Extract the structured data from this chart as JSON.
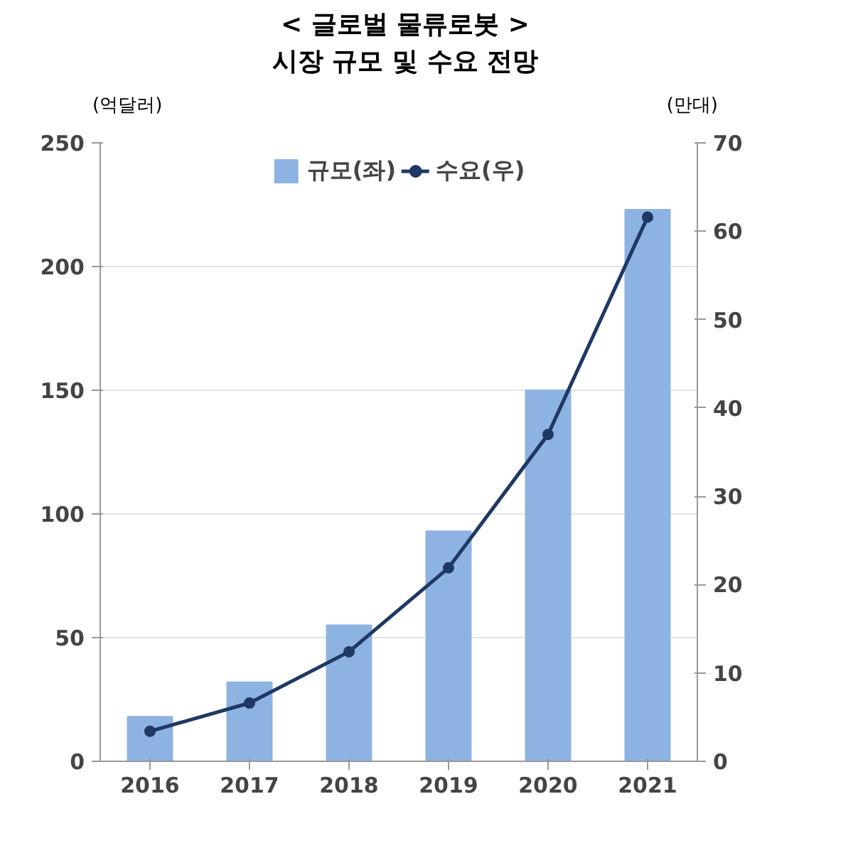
{
  "chart_data": {
    "type": "bar",
    "title": "<  글로벌 물류로봇  >\n시장 규모 및 수요 전망",
    "ylabel": "(억달러)",
    "y2label": "(만대)",
    "categories": [
      "2016",
      "2017",
      "2018",
      "2019",
      "2020",
      "2021"
    ],
    "series": [
      {
        "name": "규모(좌)",
        "color": "#8db3e2",
        "values": [
          18,
          32,
          55,
          93,
          150,
          223
        ]
      },
      {
        "name": "수요(우)",
        "type": "line",
        "axis": "y2",
        "color": "#1f3864",
        "marker": "circle",
        "values": [
          3.4,
          6.6,
          12.4,
          21.9,
          37,
          61.6
        ]
      }
    ],
    "ylim": [
      0,
      250
    ],
    "yticks": [
      0,
      50,
      100,
      150,
      200,
      250
    ],
    "y2lim": [
      0,
      70
    ],
    "y2ticks": [
      0,
      10,
      20,
      30,
      40,
      50,
      60,
      70
    ],
    "grid": "y",
    "legend": "top"
  }
}
